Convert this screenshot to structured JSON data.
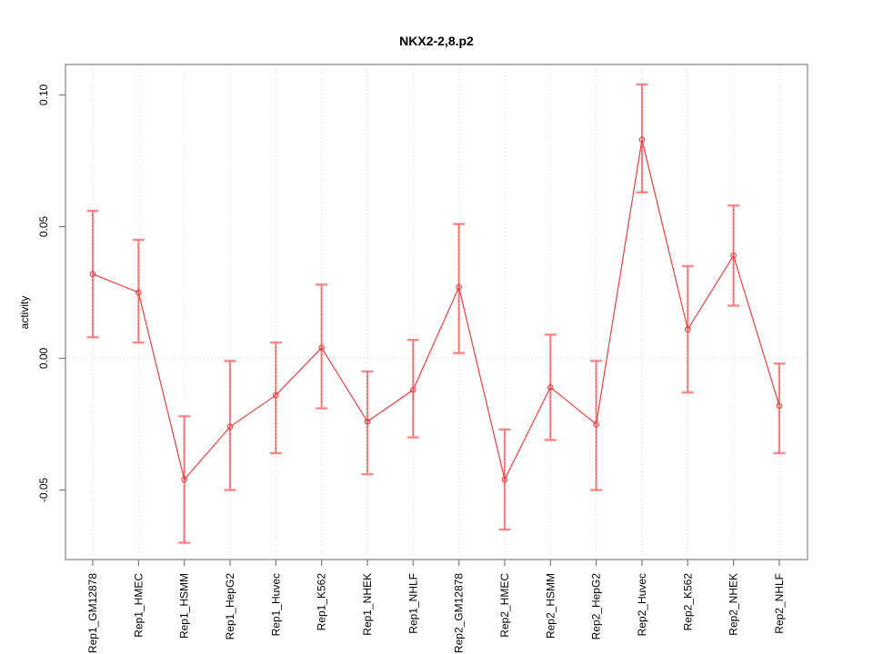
{
  "chart_data": {
    "type": "line",
    "title": "NKX2-2,8.p2",
    "xlabel": "",
    "ylabel": "activity",
    "ylim": [
      -0.076,
      0.112
    ],
    "yticks": [
      0.1,
      0.05,
      0.0,
      -0.05
    ],
    "ytick_labels": [
      "0.10",
      "0.05",
      "0.00",
      "-0.05"
    ],
    "grid": "vertical dotted gridline at every category; dotted horizontal line at y=0; no legend",
    "legend_position": "none",
    "categories": [
      "Rep1_GM12878",
      "Rep1_HMEC",
      "Rep1_HSMM",
      "Rep1_HepG2",
      "Rep1_Huvec",
      "Rep1_K562",
      "Rep1_NHEK",
      "Rep1_NHLF",
      "Rep2_GM12878",
      "Rep2_HMEC",
      "Rep2_HSMM",
      "Rep2_HepG2",
      "Rep2_Huvec",
      "Rep2_K562",
      "Rep2_NHEK",
      "Rep2_NHLF"
    ],
    "series": [
      {
        "name": "activity",
        "marker": "open-circle",
        "values": [
          0.032,
          0.025,
          -0.046,
          -0.026,
          -0.014,
          0.004,
          -0.024,
          -0.012,
          0.027,
          -0.046,
          -0.011,
          -0.025,
          0.083,
          0.011,
          0.039,
          -0.018
        ],
        "error_upper": [
          0.056,
          0.045,
          -0.022,
          -0.001,
          0.006,
          0.028,
          -0.005,
          0.007,
          0.051,
          -0.027,
          0.009,
          -0.001,
          0.104,
          0.035,
          0.058,
          -0.002
        ],
        "error_lower": [
          0.008,
          0.006,
          -0.07,
          -0.05,
          -0.036,
          -0.019,
          -0.044,
          -0.03,
          0.002,
          -0.065,
          -0.031,
          -0.05,
          0.063,
          -0.013,
          0.02,
          -0.036
        ]
      }
    ],
    "colors": {
      "line": "#e84040",
      "error_bar": "#fa7d7d",
      "grid": "#dadada",
      "box_border": "#8c8c8c",
      "tick": "#7a7a7a",
      "text": "#000000",
      "background": "#ffffff"
    }
  }
}
